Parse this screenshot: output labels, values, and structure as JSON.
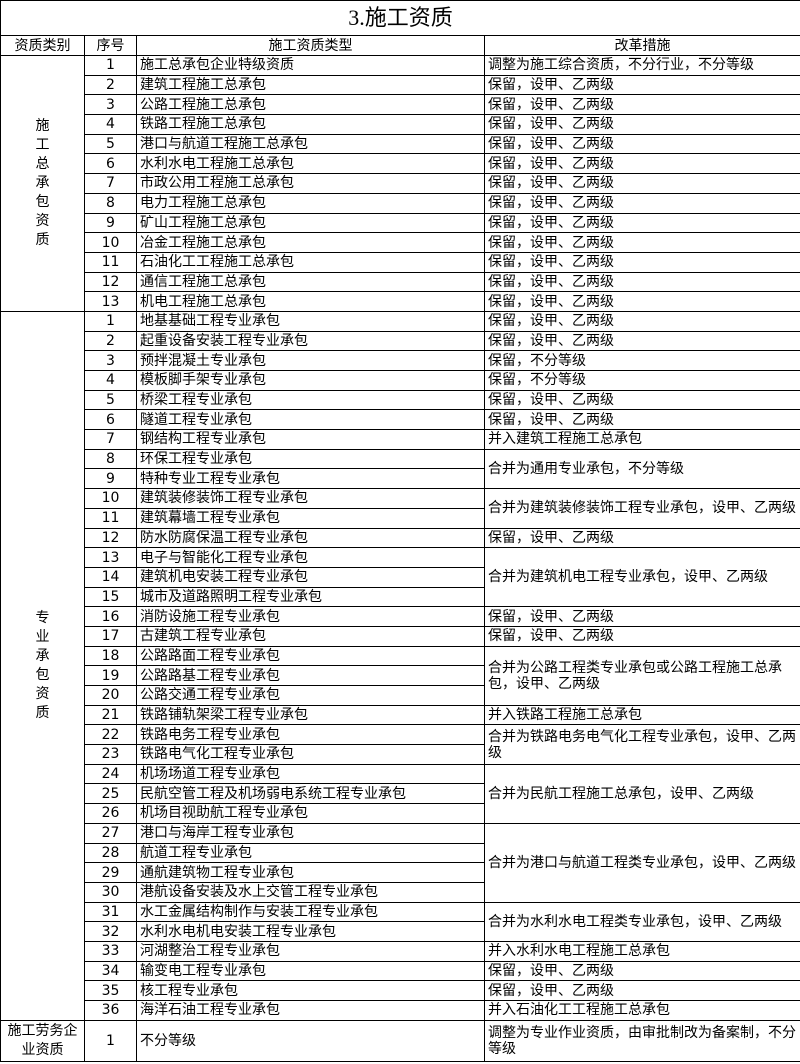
{
  "title": "3.施工资质",
  "headers": [
    "资质类别",
    "序号",
    "施工资质类型",
    "改革措施"
  ],
  "sections": [
    {
      "category": "施工总承包资质",
      "vertical": true,
      "types": [
        "施工总承包企业特级资质",
        "建筑工程施工总承包",
        "公路工程施工总承包",
        "铁路工程施工总承包",
        "港口与航道工程施工总承包",
        "水利水电工程施工总承包",
        "市政公用工程施工总承包",
        "电力工程施工总承包",
        "矿山工程施工总承包",
        "冶金工程施工总承包",
        "石油化工工程施工总承包",
        "通信工程施工总承包",
        "机电工程施工总承包"
      ],
      "measures": [
        {
          "text": "调整为施工综合资质，不分行业，不分等级",
          "span": 1
        },
        {
          "text": "保留，设甲、乙两级",
          "span": 1
        },
        {
          "text": "保留，设甲、乙两级",
          "span": 1
        },
        {
          "text": "保留，设甲、乙两级",
          "span": 1
        },
        {
          "text": "保留，设甲、乙两级",
          "span": 1
        },
        {
          "text": "保留，设甲、乙两级",
          "span": 1
        },
        {
          "text": "保留，设甲、乙两级",
          "span": 1
        },
        {
          "text": "保留，设甲、乙两级",
          "span": 1
        },
        {
          "text": "保留，设甲、乙两级",
          "span": 1
        },
        {
          "text": "保留，设甲、乙两级",
          "span": 1
        },
        {
          "text": "保留，设甲、乙两级",
          "span": 1
        },
        {
          "text": "保留，设甲、乙两级",
          "span": 1
        },
        {
          "text": "保留，设甲、乙两级",
          "span": 1
        }
      ]
    },
    {
      "category": "专业承包资质",
      "vertical": true,
      "types": [
        "地基基础工程专业承包",
        "起重设备安装工程专业承包",
        "预拌混凝土专业承包",
        "模板脚手架专业承包",
        "桥梁工程专业承包",
        "隧道工程专业承包",
        "钢结构工程专业承包",
        "环保工程专业承包",
        "特种专业工程专业承包",
        "建筑装修装饰工程专业承包",
        "建筑幕墙工程专业承包",
        "防水防腐保温工程专业承包",
        "电子与智能化工程专业承包",
        "建筑机电安装工程专业承包",
        "城市及道路照明工程专业承包",
        "消防设施工程专业承包",
        "古建筑工程专业承包",
        "公路路面工程专业承包",
        "公路路基工程专业承包",
        "公路交通工程专业承包",
        "铁路铺轨架梁工程专业承包",
        "铁路电务工程专业承包",
        "铁路电气化工程专业承包",
        "机场场道工程专业承包",
        "民航空管工程及机场弱电系统工程专业承包",
        "机场目视助航工程专业承包",
        "港口与海岸工程专业承包",
        "航道工程专业承包",
        "通航建筑物工程专业承包",
        "港航设备安装及水上交管工程专业承包",
        "水工金属结构制作与安装工程专业承包",
        "水利水电机电安装工程专业承包",
        "河湖整治工程专业承包",
        "输变电工程专业承包",
        "核工程专业承包",
        "海洋石油工程专业承包"
      ],
      "measures": [
        {
          "text": "保留，设甲、乙两级",
          "span": 1
        },
        {
          "text": "保留，设甲、乙两级",
          "span": 1
        },
        {
          "text": "保留，不分等级",
          "span": 1
        },
        {
          "text": "保留，不分等级",
          "span": 1
        },
        {
          "text": "保留，设甲、乙两级",
          "span": 1
        },
        {
          "text": "保留，设甲、乙两级",
          "span": 1
        },
        {
          "text": "并入建筑工程施工总承包",
          "span": 1
        },
        {
          "text": "合并为通用专业承包，不分等级",
          "span": 2
        },
        {
          "text": "合并为建筑装修装饰工程专业承包，设甲、乙两级",
          "span": 2
        },
        {
          "text": "保留，设甲、乙两级",
          "span": 1
        },
        {
          "text": "合并为建筑机电工程专业承包，设甲、乙两级",
          "span": 3
        },
        {
          "text": "保留，设甲、乙两级",
          "span": 1
        },
        {
          "text": "保留，设甲、乙两级",
          "span": 1
        },
        {
          "text": "合并为公路工程类专业承包或公路工程施工总承包，设甲、乙两级",
          "span": 3
        },
        {
          "text": "并入铁路工程施工总承包",
          "span": 1
        },
        {
          "text": "合并为铁路电务电气化工程专业承包，设甲、乙两级",
          "span": 2
        },
        {
          "text": "合并为民航工程施工总承包，设甲、乙两级",
          "span": 3
        },
        {
          "text": "合并为港口与航道工程类专业承包，设甲、乙两级",
          "span": 4
        },
        {
          "text": "合并为水利水电工程类专业承包，设甲、乙两级",
          "span": 2
        },
        {
          "text": "并入水利水电工程施工总承包",
          "span": 1
        },
        {
          "text": "保留，设甲、乙两级",
          "span": 1
        },
        {
          "text": "保留，设甲、乙两级",
          "span": 1
        },
        {
          "text": "并入石油化工工程施工总承包",
          "span": 1
        }
      ]
    },
    {
      "category": "施工劳务企业资质",
      "vertical": false,
      "types": [
        "不分等级"
      ],
      "measures": [
        {
          "text": "调整为专业作业资质，由审批制改为备案制，不分等级",
          "span": 1
        }
      ]
    }
  ]
}
